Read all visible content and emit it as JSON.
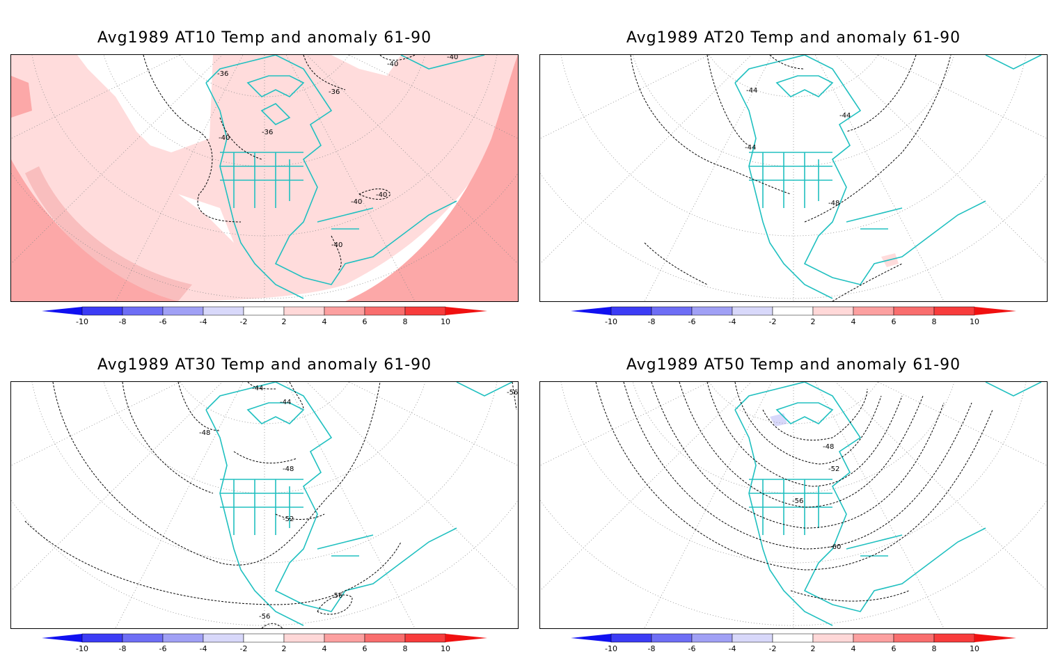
{
  "panels": [
    {
      "id": "at10",
      "title": "Avg1989 AT10 Temp and anomaly 61-90",
      "contour_labels": [
        "-36",
        "-36",
        "-36",
        "-40",
        "-40",
        "-40",
        "-40",
        "-40",
        "-40"
      ]
    },
    {
      "id": "at20",
      "title": "Avg1989 AT20 Temp and anomaly 61-90",
      "contour_labels": [
        "-44",
        "-44",
        "-44",
        "-48"
      ]
    },
    {
      "id": "at30",
      "title": "Avg1989 AT30 Temp and anomaly 61-90",
      "contour_labels": [
        "-44",
        "-44",
        "-48",
        "-48",
        "-52",
        "-56",
        "-56",
        "-56"
      ]
    },
    {
      "id": "at50",
      "title": "Avg1989 AT50 Temp and anomaly 61-90",
      "contour_labels": [
        "-48",
        "-52",
        "-56",
        "-60"
      ]
    }
  ],
  "colorbar": {
    "ticks": [
      "-10",
      "-8",
      "-6",
      "-4",
      "-2",
      "2",
      "4",
      "6",
      "8",
      "10"
    ],
    "colors": [
      "#1010f0",
      "#3c3cf5",
      "#6e6ef5",
      "#a0a0f5",
      "#d8d8fa",
      "#ffffff",
      "#ffd8d8",
      "#fca0a0",
      "#f96e6e",
      "#f83c3c",
      "#f01010"
    ]
  },
  "colors": {
    "coast": "#20c0c0",
    "anomaly_light": "#ffdcdc",
    "anomaly_medium": "#fca8a8",
    "contour": "#000000",
    "grid": "#888888"
  }
}
